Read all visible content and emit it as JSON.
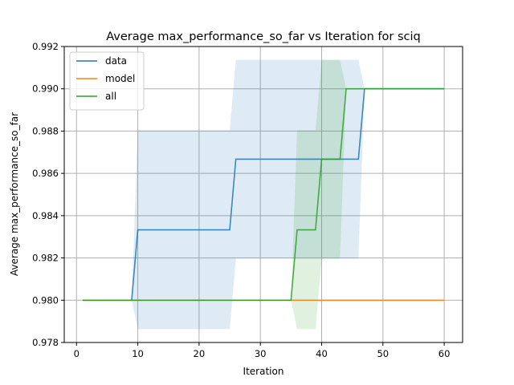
{
  "chart_data": {
    "type": "line",
    "title": "Average max_performance_so_far vs Iteration for sciq",
    "xlabel": "Iteration",
    "ylabel": "Average max_performance_so_far",
    "xlim": [
      -2,
      63
    ],
    "ylim": [
      0.978,
      0.992
    ],
    "xticks": [
      0,
      10,
      20,
      30,
      40,
      50,
      60
    ],
    "yticks": [
      0.978,
      0.98,
      0.982,
      0.984,
      0.986,
      0.988,
      0.99,
      0.992
    ],
    "xtick_labels": [
      "0",
      "10",
      "20",
      "30",
      "40",
      "50",
      "60"
    ],
    "ytick_labels": [
      "0.978",
      "0.980",
      "0.982",
      "0.984",
      "0.986",
      "0.988",
      "0.990",
      "0.992"
    ],
    "grid": true,
    "legend_position": "top-left",
    "series": [
      {
        "name": "data",
        "color": "#1f77b4",
        "x": [
          1,
          9,
          10,
          25,
          26,
          46,
          47,
          60
        ],
        "y": [
          0.98,
          0.98,
          0.98333,
          0.98333,
          0.98667,
          0.98667,
          0.99,
          0.99
        ],
        "band_x": [
          1,
          9,
          10,
          25,
          26,
          46,
          47,
          60
        ],
        "band_lower": [
          0.98,
          0.98,
          0.97863,
          0.97863,
          0.98197,
          0.98197,
          0.99,
          0.99
        ],
        "band_upper": [
          0.98,
          0.98,
          0.98804,
          0.98804,
          0.99137,
          0.99137,
          0.99,
          0.99
        ]
      },
      {
        "name": "model",
        "color": "#ff7f0e",
        "x": [
          1,
          60
        ],
        "y": [
          0.98,
          0.98
        ],
        "band_x": [],
        "band_lower": [],
        "band_upper": []
      },
      {
        "name": "all",
        "color": "#2ca02c",
        "x": [
          1,
          35,
          36,
          39,
          40,
          43,
          44,
          60
        ],
        "y": [
          0.98,
          0.98,
          0.98333,
          0.98333,
          0.98667,
          0.98667,
          0.99,
          0.99
        ],
        "band_x": [
          1,
          35,
          36,
          39,
          40,
          43,
          44,
          60
        ],
        "band_lower": [
          0.98,
          0.98,
          0.97863,
          0.97863,
          0.98197,
          0.98197,
          0.99,
          0.99
        ],
        "band_upper": [
          0.98,
          0.98,
          0.98804,
          0.98804,
          0.99137,
          0.99137,
          0.99,
          0.99
        ]
      }
    ]
  }
}
